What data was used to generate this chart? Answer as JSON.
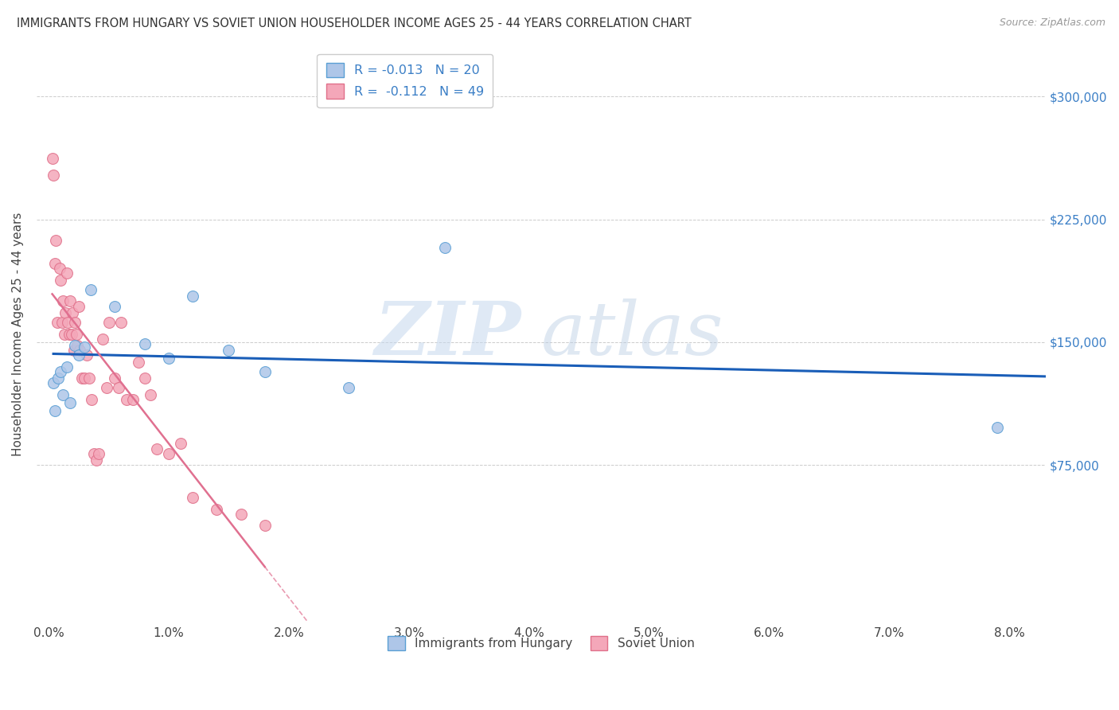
{
  "title": "IMMIGRANTS FROM HUNGARY VS SOVIET UNION HOUSEHOLDER INCOME AGES 25 - 44 YEARS CORRELATION CHART",
  "source": "Source: ZipAtlas.com",
  "ylabel": "Householder Income Ages 25 - 44 years",
  "xlabel_ticks": [
    "0.0%",
    "1.0%",
    "2.0%",
    "3.0%",
    "4.0%",
    "5.0%",
    "6.0%",
    "7.0%",
    "8.0%"
  ],
  "xlabel_vals": [
    0.0,
    0.01,
    0.02,
    0.03,
    0.04,
    0.05,
    0.06,
    0.07,
    0.08
  ],
  "ylabel_ticks": [
    "$75,000",
    "$150,000",
    "$225,000",
    "$300,000"
  ],
  "ylabel_vals": [
    75000,
    150000,
    225000,
    300000
  ],
  "xlim": [
    -0.001,
    0.083
  ],
  "ylim": [
    -20000,
    330000
  ],
  "hungary_color": "#aec6e8",
  "hungary_edge_color": "#5a9fd4",
  "soviet_color": "#f4a7b9",
  "soviet_edge_color": "#e0708a",
  "hungary_R": -0.013,
  "hungary_N": 20,
  "soviet_R": -0.112,
  "soviet_N": 49,
  "trend_hungary_color": "#1a5eb8",
  "trend_soviet_color": "#e07090",
  "watermark_zip": "ZIP",
  "watermark_atlas": "atlas",
  "legend_label_hungary": "Immigrants from Hungary",
  "legend_label_soviet": "Soviet Union",
  "hungary_x": [
    0.0004,
    0.0005,
    0.0008,
    0.001,
    0.0012,
    0.0015,
    0.0018,
    0.0022,
    0.0025,
    0.003,
    0.0035,
    0.0055,
    0.008,
    0.01,
    0.012,
    0.015,
    0.018,
    0.025,
    0.033,
    0.079
  ],
  "hungary_y": [
    125000,
    108000,
    128000,
    132000,
    118000,
    135000,
    113000,
    148000,
    142000,
    147000,
    182000,
    172000,
    149000,
    140000,
    178000,
    145000,
    132000,
    122000,
    208000,
    98000
  ],
  "soviet_x": [
    0.0003,
    0.0004,
    0.0005,
    0.0006,
    0.0007,
    0.0009,
    0.001,
    0.0011,
    0.0012,
    0.0013,
    0.0014,
    0.0015,
    0.0016,
    0.0017,
    0.0018,
    0.0019,
    0.002,
    0.0021,
    0.0022,
    0.0023,
    0.0024,
    0.0025,
    0.0026,
    0.0028,
    0.003,
    0.0032,
    0.0034,
    0.0036,
    0.0038,
    0.004,
    0.0042,
    0.0045,
    0.0048,
    0.005,
    0.0055,
    0.0058,
    0.006,
    0.0065,
    0.007,
    0.0075,
    0.008,
    0.0085,
    0.009,
    0.01,
    0.011,
    0.012,
    0.014,
    0.016,
    0.018
  ],
  "soviet_y": [
    262000,
    252000,
    198000,
    212000,
    162000,
    195000,
    188000,
    162000,
    175000,
    155000,
    168000,
    192000,
    162000,
    155000,
    175000,
    155000,
    168000,
    145000,
    162000,
    155000,
    148000,
    172000,
    145000,
    128000,
    128000,
    142000,
    128000,
    115000,
    82000,
    78000,
    82000,
    152000,
    122000,
    162000,
    128000,
    122000,
    162000,
    115000,
    115000,
    138000,
    128000,
    118000,
    85000,
    82000,
    88000,
    55000,
    48000,
    45000,
    38000
  ],
  "background_color": "#ffffff",
  "grid_color": "#cccccc",
  "marker_size": 100
}
